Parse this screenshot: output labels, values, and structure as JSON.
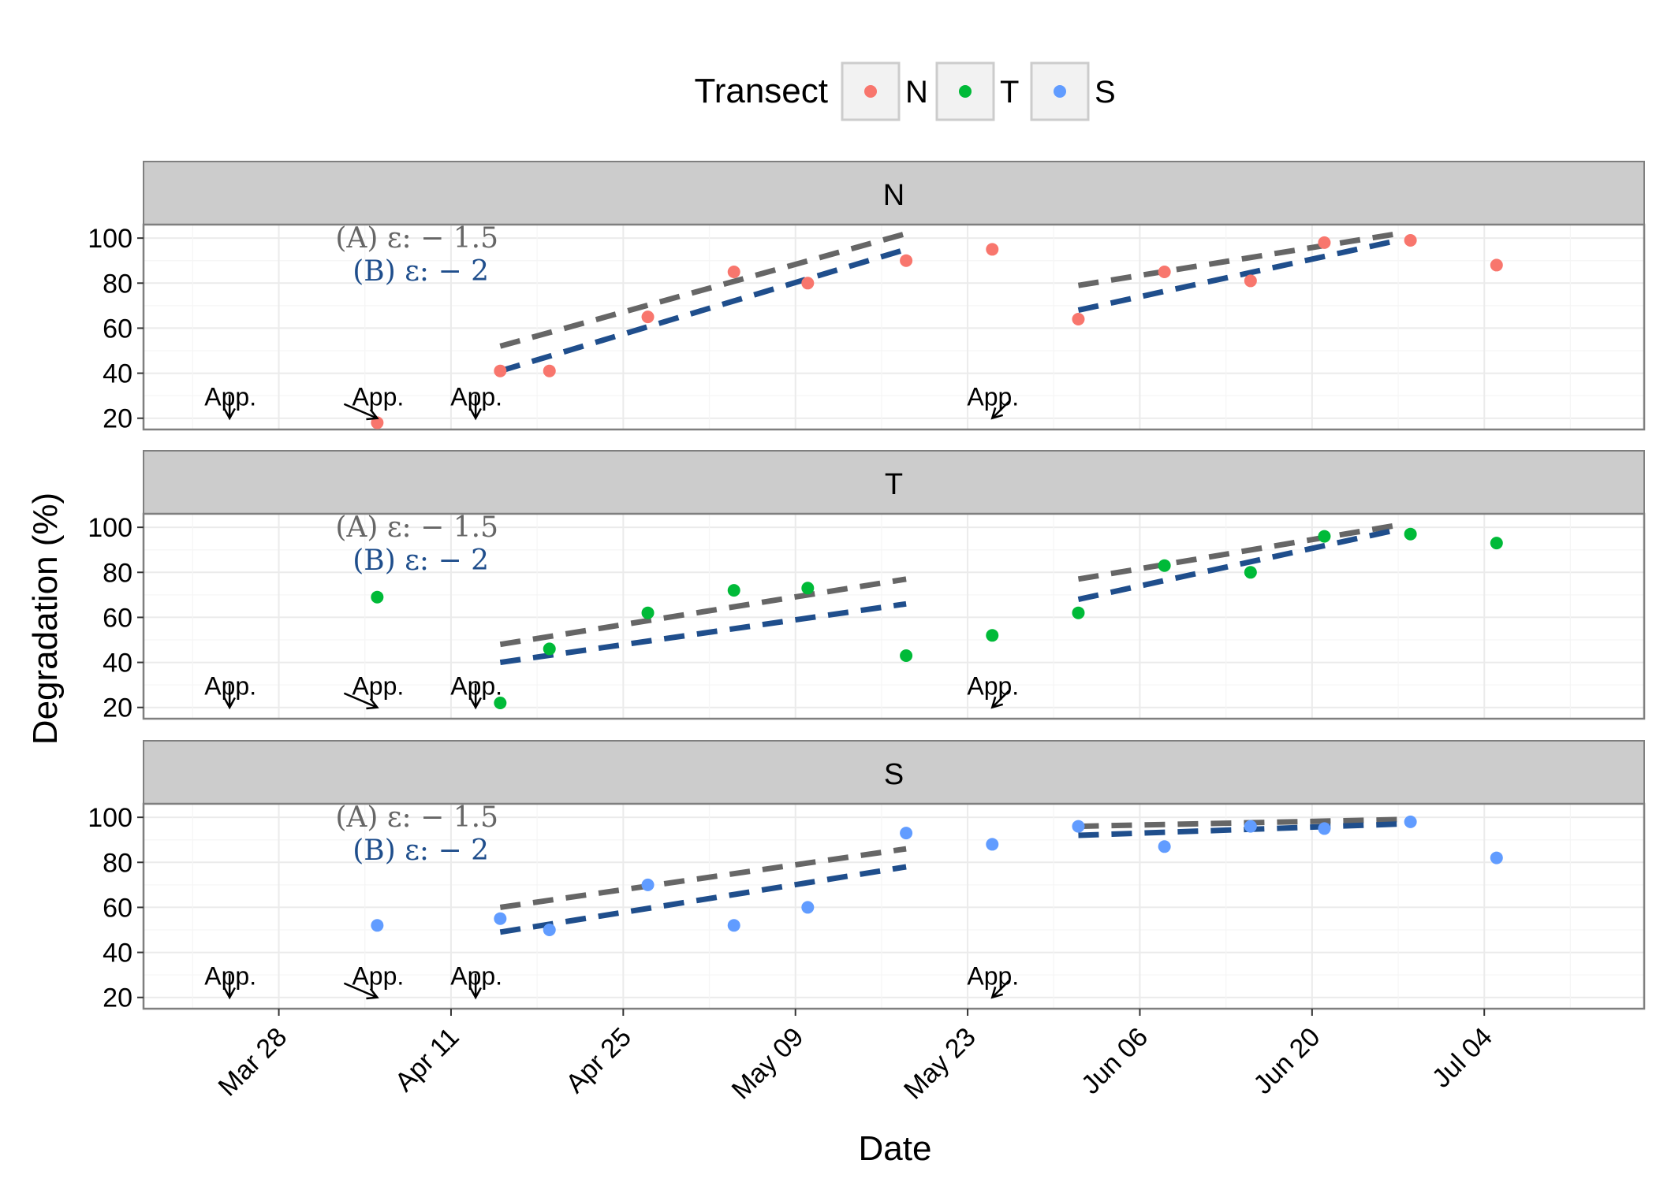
{
  "chart_data": {
    "type": "scatter",
    "xlabel": "Date",
    "ylabel": "Degradation (%)",
    "x_axis_type": "date",
    "xlim": [
      "2016-03-17",
      "2016-07-17"
    ],
    "ylim": [
      15,
      106
    ],
    "y_ticks": [
      20,
      40,
      60,
      80,
      100
    ],
    "x_ticks": [
      {
        "date": "2016-03-28",
        "label": "Mar 28"
      },
      {
        "date": "2016-04-11",
        "label": "Apr 11"
      },
      {
        "date": "2016-04-25",
        "label": "Apr 25"
      },
      {
        "date": "2016-05-09",
        "label": "May 09"
      },
      {
        "date": "2016-05-23",
        "label": "May 23"
      },
      {
        "date": "2016-06-06",
        "label": "Jun 06"
      },
      {
        "date": "2016-06-20",
        "label": "Jun 20"
      },
      {
        "date": "2016-07-04",
        "label": "Jul 04"
      }
    ],
    "grid": true,
    "legend": {
      "title": "Transect",
      "placement": "top",
      "entries": [
        {
          "label": "N",
          "color": "#F8766D"
        },
        {
          "label": "T",
          "color": "#00BA38"
        },
        {
          "label": "S",
          "color": "#619CFF"
        }
      ]
    },
    "model_colors": {
      "A": "#666666",
      "B": "#1F4E8C"
    },
    "facets": [
      {
        "name": "N",
        "color": "#F8766D",
        "annotation_a": "(A) ε: − 1.5",
        "annotation_b": "(B) ε: − 2",
        "points": [
          {
            "x": "2016-04-05",
            "y": 18
          },
          {
            "x": "2016-04-15",
            "y": 41
          },
          {
            "x": "2016-04-19",
            "y": 41
          },
          {
            "x": "2016-04-27",
            "y": 65
          },
          {
            "x": "2016-05-04",
            "y": 85
          },
          {
            "x": "2016-05-10",
            "y": 80
          },
          {
            "x": "2016-05-18",
            "y": 90
          },
          {
            "x": "2016-05-25",
            "y": 95
          },
          {
            "x": "2016-06-01",
            "y": 64
          },
          {
            "x": "2016-06-08",
            "y": 85
          },
          {
            "x": "2016-06-15",
            "y": 81
          },
          {
            "x": "2016-06-21",
            "y": 98
          },
          {
            "x": "2016-06-28",
            "y": 99
          },
          {
            "x": "2016-07-05",
            "y": 88
          }
        ],
        "model_a": [
          [
            {
              "x": "2016-04-15",
              "y": 52
            },
            {
              "x": "2016-05-18",
              "y": 102
            }
          ],
          [
            {
              "x": "2016-06-01",
              "y": 79
            },
            {
              "x": "2016-06-27",
              "y": 102
            }
          ]
        ],
        "model_b": [
          [
            {
              "x": "2016-04-15",
              "y": 41
            },
            {
              "x": "2016-05-18",
              "y": 95
            }
          ],
          [
            {
              "x": "2016-06-01",
              "y": 68
            },
            {
              "x": "2016-06-27",
              "y": 99
            }
          ]
        ]
      },
      {
        "name": "T",
        "color": "#00BA38",
        "annotation_a": "(A) ε: − 1.5",
        "annotation_b": "(B) ε: − 2",
        "points": [
          {
            "x": "2016-04-05",
            "y": 69
          },
          {
            "x": "2016-04-15",
            "y": 22
          },
          {
            "x": "2016-04-19",
            "y": 46
          },
          {
            "x": "2016-04-27",
            "y": 62
          },
          {
            "x": "2016-05-04",
            "y": 72
          },
          {
            "x": "2016-05-10",
            "y": 73
          },
          {
            "x": "2016-05-18",
            "y": 43
          },
          {
            "x": "2016-05-25",
            "y": 52
          },
          {
            "x": "2016-06-01",
            "y": 62
          },
          {
            "x": "2016-06-08",
            "y": 83
          },
          {
            "x": "2016-06-15",
            "y": 80
          },
          {
            "x": "2016-06-21",
            "y": 96
          },
          {
            "x": "2016-06-28",
            "y": 97
          },
          {
            "x": "2016-07-05",
            "y": 93
          }
        ],
        "model_a": [
          [
            {
              "x": "2016-04-15",
              "y": 48
            },
            {
              "x": "2016-05-18",
              "y": 77
            }
          ],
          [
            {
              "x": "2016-06-01",
              "y": 77
            },
            {
              "x": "2016-06-27",
              "y": 101
            }
          ]
        ],
        "model_b": [
          [
            {
              "x": "2016-04-15",
              "y": 40
            },
            {
              "x": "2016-05-18",
              "y": 66
            }
          ],
          [
            {
              "x": "2016-06-01",
              "y": 68
            },
            {
              "x": "2016-06-27",
              "y": 99
            }
          ]
        ]
      },
      {
        "name": "S",
        "color": "#619CFF",
        "annotation_a": "(A) ε: − 1.5",
        "annotation_b": "(B) ε: − 2",
        "points": [
          {
            "x": "2016-04-05",
            "y": 52
          },
          {
            "x": "2016-04-15",
            "y": 55
          },
          {
            "x": "2016-04-19",
            "y": 50
          },
          {
            "x": "2016-04-27",
            "y": 70
          },
          {
            "x": "2016-05-04",
            "y": 52
          },
          {
            "x": "2016-05-10",
            "y": 60
          },
          {
            "x": "2016-05-18",
            "y": 93
          },
          {
            "x": "2016-05-25",
            "y": 88
          },
          {
            "x": "2016-06-01",
            "y": 96
          },
          {
            "x": "2016-06-08",
            "y": 87
          },
          {
            "x": "2016-06-15",
            "y": 96
          },
          {
            "x": "2016-06-21",
            "y": 95
          },
          {
            "x": "2016-06-28",
            "y": 98
          },
          {
            "x": "2016-07-05",
            "y": 82
          }
        ],
        "model_a": [
          [
            {
              "x": "2016-04-15",
              "y": 60
            },
            {
              "x": "2016-05-18",
              "y": 86
            }
          ],
          [
            {
              "x": "2016-06-01",
              "y": 96
            },
            {
              "x": "2016-06-27",
              "y": 99
            }
          ]
        ],
        "model_b": [
          [
            {
              "x": "2016-04-15",
              "y": 49
            },
            {
              "x": "2016-05-18",
              "y": 78
            }
          ],
          [
            {
              "x": "2016-06-01",
              "y": 92
            },
            {
              "x": "2016-06-27",
              "y": 97
            }
          ]
        ]
      }
    ],
    "application_markers": [
      {
        "label": "App.",
        "x": "2016-03-24",
        "y": 20,
        "arrow": "down"
      },
      {
        "label": "App.",
        "x": "2016-04-05",
        "y": 20,
        "arrow": "down-right"
      },
      {
        "label": "App.",
        "x": "2016-04-13",
        "y": 20,
        "arrow": "down"
      },
      {
        "label": "App.",
        "x": "2016-05-25",
        "y": 20,
        "arrow": "down-left"
      }
    ]
  }
}
